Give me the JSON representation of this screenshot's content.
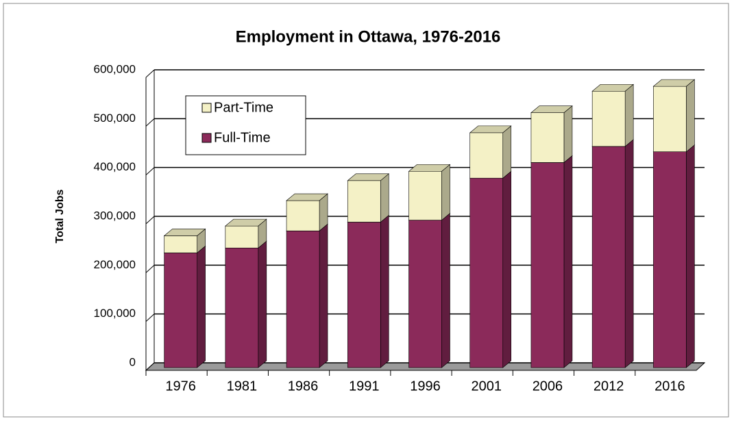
{
  "chart_data": {
    "type": "bar",
    "stacked": true,
    "title": "Employment in Ottawa, 1976-2016",
    "y_label": "Total Jobs",
    "categories": [
      "1976",
      "1981",
      "1986",
      "1991",
      "1996",
      "2001",
      "2006",
      "2012",
      "2016"
    ],
    "series": [
      {
        "name": "Full-Time",
        "color": "#8b2a5a",
        "values": [
          235000,
          245000,
          280000,
          298000,
          302000,
          388000,
          420000,
          453000,
          442000
        ]
      },
      {
        "name": "Part-Time",
        "color": "#f4f1c6",
        "values": [
          35000,
          45000,
          62000,
          85000,
          100000,
          93000,
          102000,
          113000,
          134000
        ]
      }
    ],
    "ylim": [
      0,
      600000
    ],
    "yticks": [
      0,
      {
        "value": 100000,
        "label": "100,000"
      },
      {
        "value": 200000,
        "label": "200,000"
      },
      {
        "value": 300000,
        "label": "300,000"
      },
      {
        "value": 400000,
        "label": "400,000"
      },
      {
        "value": 500000,
        "label": "500,000"
      },
      {
        "value": 600000,
        "label": "600,000"
      }
    ],
    "grid": true,
    "legend": "upper left"
  }
}
